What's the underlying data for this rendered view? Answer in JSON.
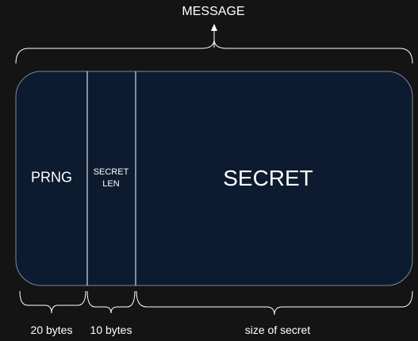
{
  "title": "MESSAGE",
  "segments": [
    {
      "label": "PRNG",
      "size_label": "20 bytes"
    },
    {
      "label": "SECRET LEN",
      "size_label": "10 bytes"
    },
    {
      "label": "SECRET",
      "size_label": "size of secret"
    }
  ],
  "colors": {
    "background": "#141414",
    "block_fill": "#0c1b2f",
    "line": "#ffffff"
  }
}
